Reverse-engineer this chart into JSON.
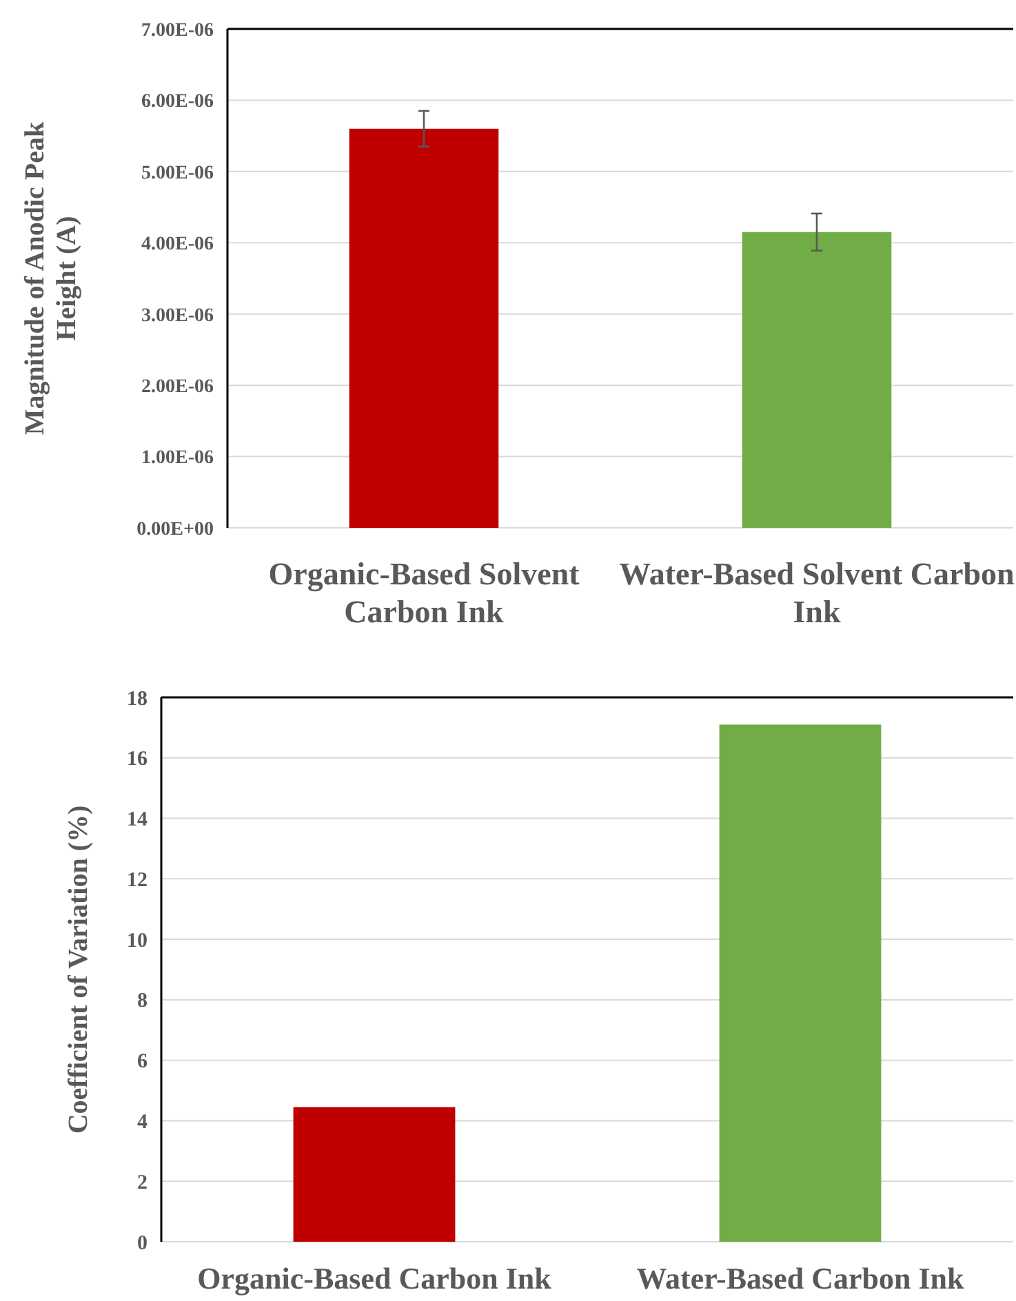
{
  "chart_data": [
    {
      "type": "bar",
      "ylabel": "Magnitude of Anodic Peak Height (A)",
      "categories": [
        "Organic-Based Solvent Carbon Ink",
        "Water-Based Solvent Carbon Ink"
      ],
      "values": [
        5.6e-06,
        4.15e-06
      ],
      "errors": [
        2.5e-07,
        2.6e-07
      ],
      "colors": [
        "#c00000",
        "#70ad47"
      ],
      "ylim": [
        0,
        7e-06
      ],
      "yticks": [
        {
          "value": 0,
          "label": "0.00E+00"
        },
        {
          "value": 1e-06,
          "label": "1.00E-06"
        },
        {
          "value": 2e-06,
          "label": "2.00E-06"
        },
        {
          "value": 3e-06,
          "label": "3.00E-06"
        },
        {
          "value": 4e-06,
          "label": "4.00E-06"
        },
        {
          "value": 5e-06,
          "label": "5.00E-06"
        },
        {
          "value": 6e-06,
          "label": "6.00E-06"
        },
        {
          "value": 7e-06,
          "label": "7.00E-06"
        }
      ],
      "grid": "y"
    },
    {
      "type": "bar",
      "ylabel": "Coefficient of Variation (%)",
      "categories": [
        "Organic-Based Carbon Ink",
        "Water-Based Carbon Ink"
      ],
      "values": [
        4.45,
        17.1
      ],
      "colors": [
        "#c00000",
        "#70ad47"
      ],
      "ylim": [
        0,
        18
      ],
      "yticks": [
        0,
        2,
        4,
        6,
        8,
        10,
        12,
        14,
        16,
        18
      ],
      "grid": "y"
    }
  ]
}
